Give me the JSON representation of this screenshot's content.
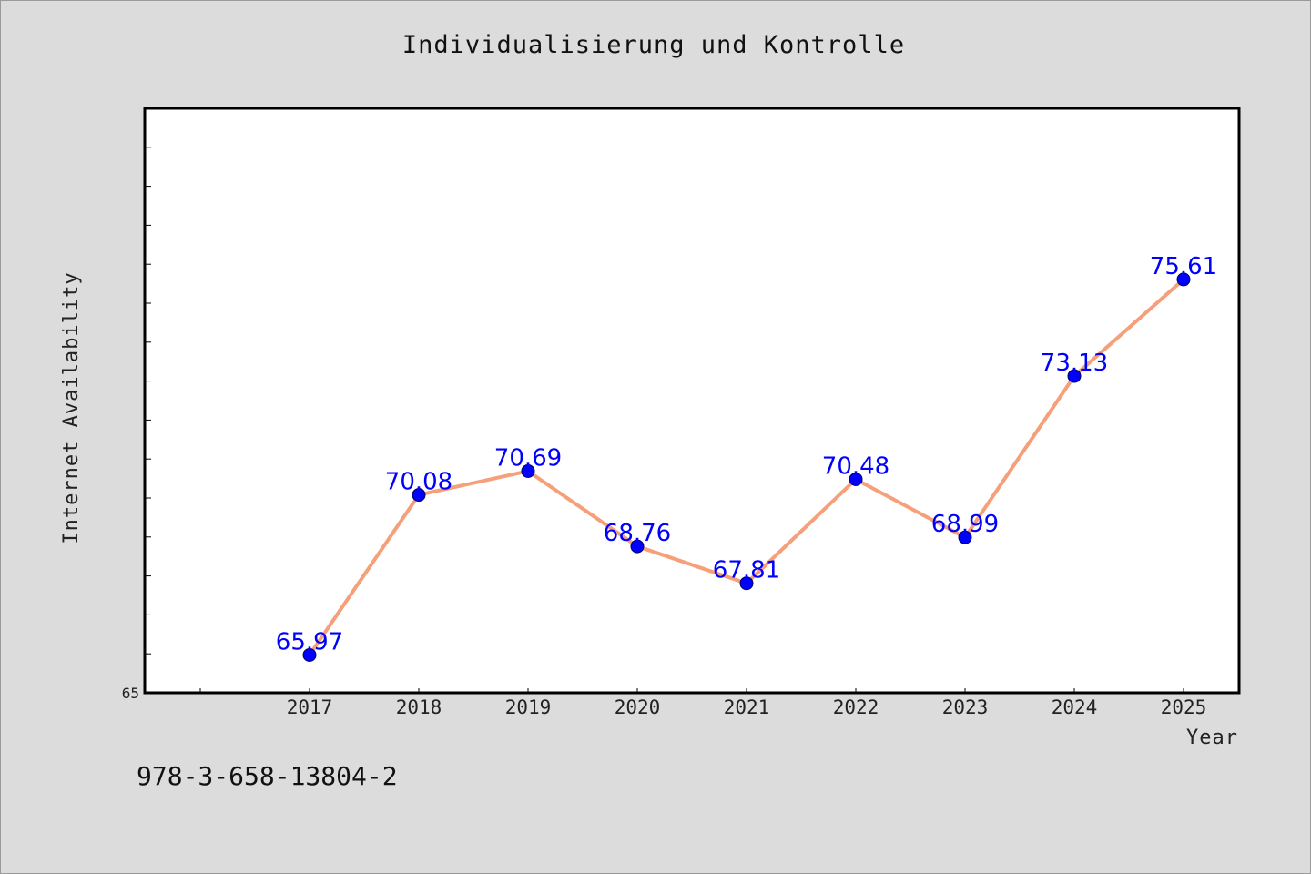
{
  "chart_data": {
    "type": "line",
    "title": "Individualisierung und Kontrolle",
    "xlabel": "Year",
    "ylabel": "Internet Availability",
    "categories": [
      "2017",
      "2018",
      "2019",
      "2020",
      "2021",
      "2022",
      "2023",
      "2024",
      "2025"
    ],
    "series": [
      {
        "values": [
          65.97,
          70.08,
          70.69,
          68.76,
          67.81,
          70.48,
          68.99,
          73.13,
          75.61
        ],
        "data_labels": [
          "65.97",
          "70.08",
          "70.69",
          "68.76",
          "67.81",
          "70.48",
          "68.99",
          "73.13",
          "75.61"
        ]
      }
    ],
    "y_tick_labels": [
      "65"
    ],
    "ylim": [
      65,
      80
    ],
    "grid": false,
    "colors": {
      "line": "#f5a07a",
      "marker": "#0000ff",
      "data_label": "#0000ff",
      "plot_background": "#ffffff",
      "page_background": "#dcdcdc"
    }
  },
  "footer": {
    "isbn": "978-3-658-13804-2"
  }
}
